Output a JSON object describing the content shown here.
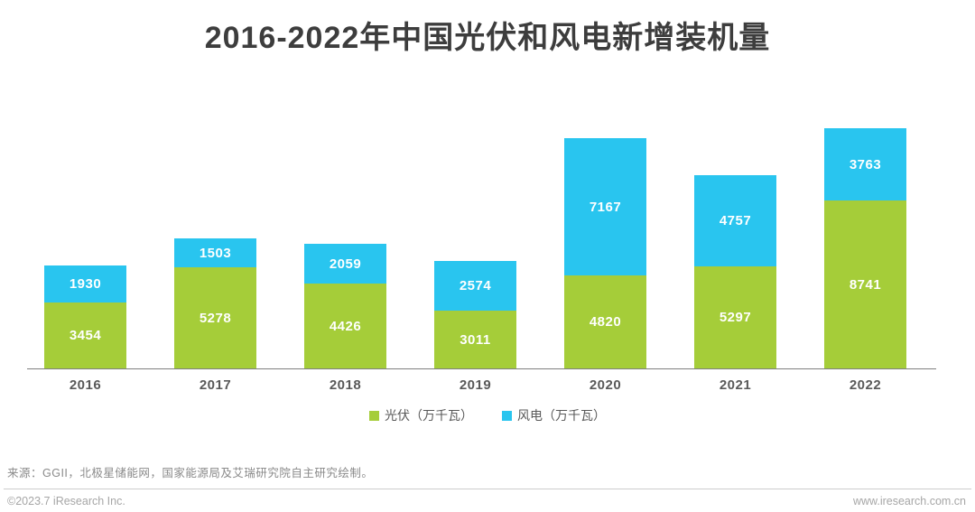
{
  "title": "2016-2022年中国光伏和风电新增装机量",
  "chart_data": {
    "type": "bar",
    "stacked": true,
    "categories": [
      "2016",
      "2017",
      "2018",
      "2019",
      "2020",
      "2021",
      "2022"
    ],
    "series": [
      {
        "name": "光伏（万千瓦）",
        "color": "#a5cd39",
        "values": [
          3454,
          5278,
          4426,
          3011,
          4820,
          5297,
          8741
        ]
      },
      {
        "name": "风电（万千瓦）",
        "color": "#29c5ef",
        "values": [
          1930,
          1503,
          2059,
          2574,
          7167,
          4757,
          3763
        ]
      }
    ],
    "title": "2016-2022年中国光伏和风电新增装机量",
    "xlabel": "",
    "ylabel": "",
    "grid": false,
    "legend_position": "bottom",
    "value_labels": "inside-white",
    "axis_line_color": "#7f7f7f"
  },
  "legend": [
    {
      "label": "光伏（万千瓦）",
      "color": "#a5cd39"
    },
    {
      "label": "风电（万千瓦）",
      "color": "#29c5ef"
    }
  ],
  "source_note": "来源：GGII，北极星储能网，国家能源局及艾瑞研究院自主研究绘制。",
  "footer": {
    "copyright": "©2023.7 iResearch Inc.",
    "website": "www.iresearch.com.cn"
  }
}
